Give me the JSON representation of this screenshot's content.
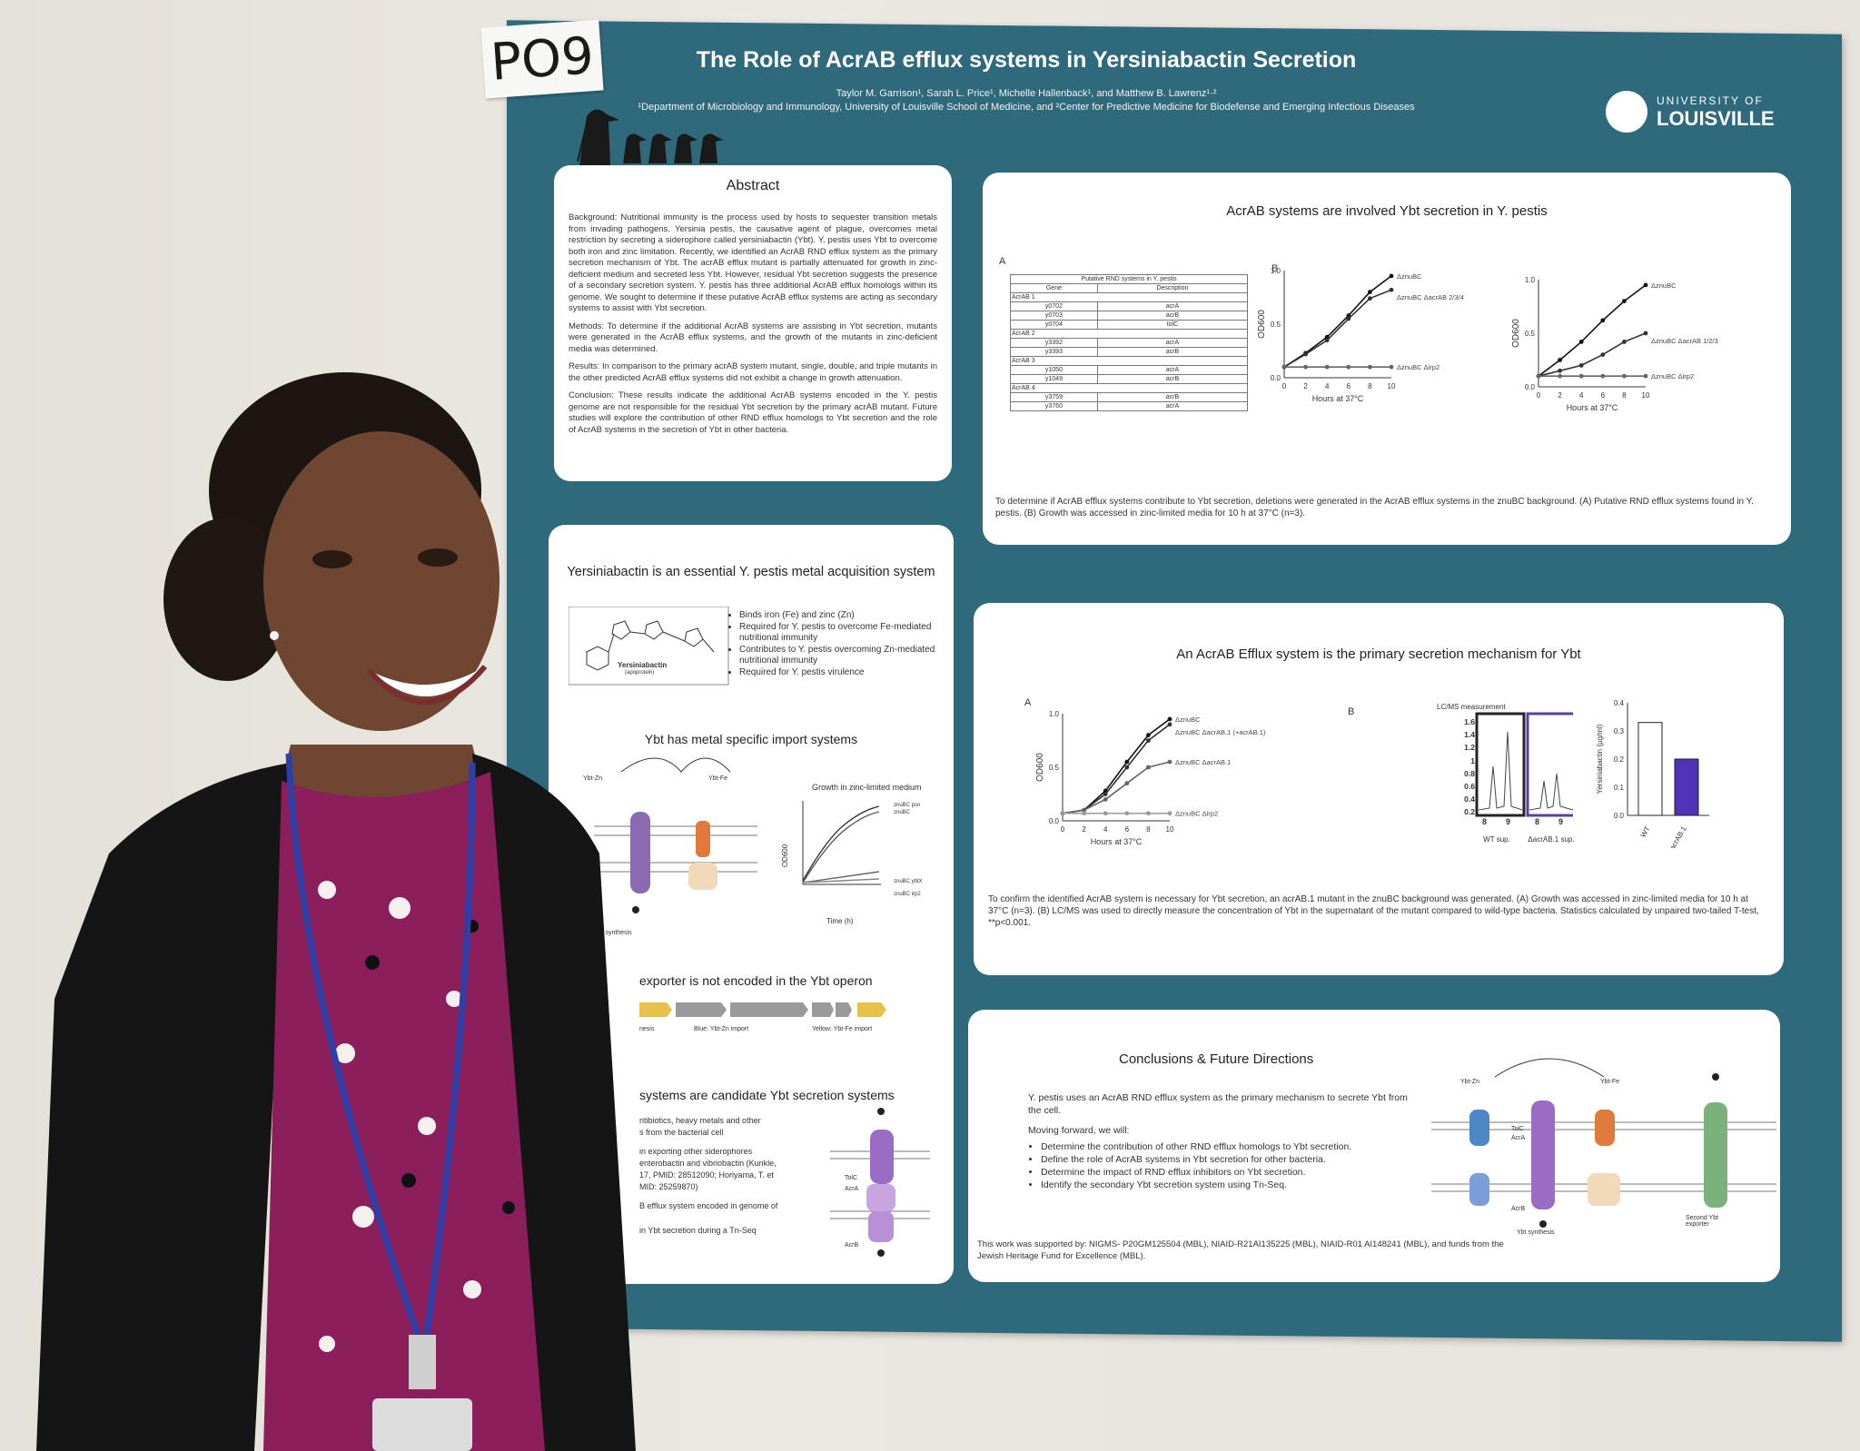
{
  "tag": {
    "label": "PO9"
  },
  "poster": {
    "title": "The Role of AcrAB efflux systems in Yersiniabactin Secretion",
    "authors": "Taylor M. Garrison¹, Sarah L. Price¹, Michelle Hallenback¹, and Matthew B. Lawrenz¹·²",
    "affiliations": "¹Department of Microbiology and Immunology, University of Louisville School of Medicine, and ²Center for Predictive Medicine for Biodefense and Emerging Infectious Diseases",
    "logo_line1": "UNIVERSITY OF",
    "logo_line2": "LOUISVILLE",
    "abstract": {
      "heading": "Abstract",
      "background": "Background: Nutritional immunity is the process used by hosts to sequester transition metals from invading pathogens. Yersinia pestis, the causative agent of plague, overcomes metal restriction by secreting a siderophore called yersiniabactin (Ybt). Y. pestis uses Ybt to overcome both iron and zinc limitation. Recently, we identified an AcrAB RND efflux system as the primary secretion mechanism of Ybt. The acrAB efflux mutant is partially attenuated for growth in zinc-deficient medium and secreted less Ybt. However, residual Ybt secretion suggests the presence of a secondary secretion system. Y. pestis has three additional AcrAB efflux homologs within its genome. We sought to determine if these putative AcrAB efflux systems are acting as secondary systems to assist with Ybt secretion.",
      "methods": "Methods: To determine if the additional AcrAB systems are assisting in Ybt secretion, mutants were generated in the AcrAB efflux systems, and the growth of the mutants in zinc-deficient media was determined.",
      "results": "Results: In comparison to the primary acrAB system mutant, single, double, and triple mutants in the other predicted AcrAB efflux systems did not exhibit a change in growth attenuation.",
      "conclusion": "Conclusion: These results indicate the additional AcrAB systems encoded in the Y. pestis genome are not responsible for the residual Ybt secretion by the primary acrAB mutant. Future studies will explore the contribution of other RND efflux homologs to Ybt secretion and the role of AcrAB systems in the secretion of Ybt in other bacteria."
    },
    "intro": {
      "heading": "Yersiniabactin is an essential Y. pestis metal acquisition system",
      "molecule_label": "Yersiniabactin",
      "molecule_sub": "(apoprotein)",
      "bullets": [
        "Binds iron (Fe) and zinc (Zn)",
        "Required for Y. pestis to overcome Fe-mediated nutritional immunity",
        "Contributes to Y. pestis overcoming Zn-mediated nutritional immunity",
        "Required for Y. pestis virulence"
      ],
      "import_heading": "Ybt has metal specific import systems",
      "ybt_zn": "Ybt-Zn",
      "ybt_fe": "Ybt-Fe",
      "growth_title": "Growth in zinc-limited medium",
      "growth_legend": [
        "znuBC psn",
        "znuBC",
        "znuBC ybtX",
        "znuBC irp2"
      ],
      "growth_xlabel": "Time (h)",
      "growth_ylabel": "OD600",
      "ybt_synthesis": "Ybt synthesis",
      "exporter_heading": "exporter is not encoded in the Ybt operon",
      "operon_labels": [
        "nesis",
        "Blue: Ybt-Zn import",
        "Yellow: Ybt-Fe import"
      ],
      "candidate_heading": "systems are candidate Ybt secretion systems",
      "candidate_text": [
        "ntibiotics, heavy metals and other",
        "s from the bacterial cell",
        "in exporting other siderophores",
        "enterobactin and vibriobactin (Kunkle,",
        "17, PMID: 28512090; Horiyama, T. et",
        "MID: 25259870)",
        "B efflux system encoded in genome of",
        "in Ybt secretion during a Tn-Seq"
      ],
      "tolc": "TolC",
      "acra": "AcrA",
      "acrb": "AcrB"
    },
    "fig1": {
      "heading": "AcrAB systems are involved Ybt secretion in Y. pestis",
      "panel_a": "A",
      "panel_b": "B",
      "table_title": "Putative RND systems in Y. pestis",
      "table_headers": [
        "Gene",
        "Description"
      ],
      "table_groups": [
        {
          "name": "AcrAB 1",
          "rows": [
            [
              "y0702",
              "acrA"
            ],
            [
              "y0703",
              "acrB"
            ],
            [
              "y0704",
              "tolC"
            ]
          ]
        },
        {
          "name": "AcrAB 2",
          "rows": [
            [
              "y3392",
              "acrA"
            ],
            [
              "y3393",
              "acrB"
            ]
          ]
        },
        {
          "name": "AcrAB 3",
          "rows": [
            [
              "y1050",
              "acrA"
            ],
            [
              "y1049",
              "acrB"
            ]
          ]
        },
        {
          "name": "AcrAB 4",
          "rows": [
            [
              "y3759",
              "acrB"
            ],
            [
              "y3760",
              "acrA"
            ]
          ]
        }
      ],
      "xlabel": "Hours at 37°C",
      "ylabel": "OD600",
      "x_ticks": [
        "0",
        "2",
        "4",
        "6",
        "8",
        "10"
      ],
      "y_ticks": [
        "0.0",
        "0.5",
        "1.0"
      ],
      "chart1_legend": [
        "ΔznuBC",
        "ΔznuBC ΔacrAB 2/3/4",
        "ΔznuBC Δirp2"
      ],
      "chart2_legend": [
        "ΔznuBC",
        "ΔznuBC ΔacrAB 1/2/3",
        "ΔznuBC Δirp2"
      ],
      "caption": "To determine if AcrAB efflux systems contribute to Ybt secretion, deletions were generated in the AcrAB efflux systems in the znuBC background. (A) Putative RND efflux systems found in Y. pestis. (B) Growth was accessed in zinc-limited media for 10 h at 37°C (n=3)."
    },
    "fig2": {
      "heading": "An AcrAB Efflux system is the primary secretion mechanism for Ybt",
      "panel_a": "A",
      "panel_b": "B",
      "legend": [
        "ΔznuBC",
        "ΔznuBC ΔacrAB.1 (+acrAB.1)",
        "ΔznuBC ΔacrAB.1",
        "ΔznuBC Δirp2"
      ],
      "xlabel": "Hours at 37°C",
      "ylabel": "OD600",
      "x_ticks": [
        "0",
        "2",
        "4",
        "6",
        "8",
        "10"
      ],
      "y_ticks": [
        "0.0",
        "0.5",
        "1.0"
      ],
      "lcms_title": "LC/MS measurement",
      "lcms_ticks": [
        "1.6",
        "1.4",
        "1.2",
        "1",
        "0.8",
        "0.6",
        "0.4",
        "0.2"
      ],
      "lcms_x": [
        "8",
        "9",
        "8",
        "9"
      ],
      "lcms_samples": [
        "WT sup.",
        "ΔacrAB.1 sup."
      ],
      "bar_ylabel": "Yersiniabactin (µg/ml)",
      "bar_ticks": [
        "0.4",
        "0.3",
        "0.2",
        "0.1",
        "0.0"
      ],
      "bar_categories": [
        "WT",
        "ΔacrAB.1"
      ],
      "caption": "To confirm the identified AcrAB system is necessary for Ybt secretion, an acrAB.1 mutant in the znuBC background was generated. (A) Growth was accessed in zinc-limited media for 10 h at 37°C (n=3). (B) LC/MS was used to directly measure the concentration of Ybt in the supernatant of the mutant compared to wild-type bacteria. Statistics calculated by unpaired two-tailed T-test, **p<0.001."
    },
    "conclusions": {
      "heading": "Conclusions & Future Directions",
      "lead": "Y. pestis uses an AcrAB RND efflux system as the primary mechanism to secrete Ybt from the cell.",
      "moving": "Moving forward, we will:",
      "bullets": [
        "Determine the contribution of other RND efflux homologs to Ybt secretion.",
        "Define the role of AcrAB systems in Ybt secretion for other bacteria.",
        "Determine the impact of RND efflux inhibitors on Ybt secretion.",
        "Identify the secondary Ybt secretion system using Tn-Seq."
      ],
      "support": "This work was supported by: NIGMS- P20GM125504 (MBL), NIAID-R21AI135225 (MBL), NIAID-R01 AI148241 (MBL), and funds from the Jewish Heritage Fund for Excellence (MBL).",
      "diagram_labels": {
        "zn": "Ybt-Zn",
        "fe": "Ybt-Fe",
        "tolc": "TolC",
        "acra": "AcrA",
        "acrb": "AcrB",
        "synthesis": "Ybt synthesis",
        "second": "Second Ybt exporter"
      }
    }
  },
  "chart_data": [
    {
      "type": "line",
      "title": "",
      "xlabel": "Hours at 37°C",
      "ylabel": "OD600",
      "xlim": [
        0,
        10
      ],
      "ylim": [
        0,
        1.0
      ],
      "x": [
        0,
        2,
        4,
        6,
        8,
        10
      ],
      "series": [
        {
          "name": "ΔznuBC",
          "values": [
            0.1,
            0.23,
            0.38,
            0.58,
            0.8,
            0.95
          ]
        },
        {
          "name": "ΔznuBC ΔacrAB 2/3/4",
          "values": [
            0.1,
            0.22,
            0.35,
            0.55,
            0.74,
            0.82
          ]
        },
        {
          "name": "ΔznuBC Δirp2",
          "values": [
            0.1,
            0.1,
            0.1,
            0.1,
            0.1,
            0.1
          ]
        }
      ]
    },
    {
      "type": "line",
      "title": "",
      "xlabel": "Hours at 37°C",
      "ylabel": "OD600",
      "xlim": [
        0,
        10
      ],
      "ylim": [
        0,
        1.0
      ],
      "x": [
        0,
        2,
        4,
        6,
        8,
        10
      ],
      "series": [
        {
          "name": "ΔznuBC",
          "values": [
            0.1,
            0.25,
            0.42,
            0.62,
            0.8,
            0.95
          ]
        },
        {
          "name": "ΔznuBC ΔacrAB 1/2/3",
          "values": [
            0.1,
            0.15,
            0.2,
            0.3,
            0.42,
            0.5
          ]
        },
        {
          "name": "ΔznuBC Δirp2",
          "values": [
            0.1,
            0.1,
            0.1,
            0.1,
            0.1,
            0.1
          ]
        }
      ]
    },
    {
      "type": "line",
      "title": "",
      "xlabel": "Hours at 37°C",
      "ylabel": "OD600",
      "xlim": [
        0,
        10
      ],
      "ylim": [
        0,
        1.0
      ],
      "x": [
        0,
        2,
        4,
        6,
        8,
        10
      ],
      "series": [
        {
          "name": "ΔznuBC",
          "values": [
            0.07,
            0.1,
            0.28,
            0.55,
            0.8,
            0.95
          ]
        },
        {
          "name": "ΔznuBC ΔacrAB.1 (+acrAB.1)",
          "values": [
            0.07,
            0.1,
            0.25,
            0.5,
            0.75,
            0.9
          ]
        },
        {
          "name": "ΔznuBC ΔacrAB.1",
          "values": [
            0.07,
            0.1,
            0.2,
            0.35,
            0.5,
            0.55
          ]
        },
        {
          "name": "ΔznuBC Δirp2",
          "values": [
            0.07,
            0.07,
            0.07,
            0.07,
            0.07,
            0.07
          ]
        }
      ]
    },
    {
      "type": "bar",
      "title": "",
      "xlabel": "",
      "ylabel": "Yersiniabactin (µg/ml)",
      "ylim": [
        0,
        0.4
      ],
      "categories": [
        "WT",
        "ΔacrAB.1"
      ],
      "values": [
        0.33,
        0.2
      ]
    }
  ]
}
